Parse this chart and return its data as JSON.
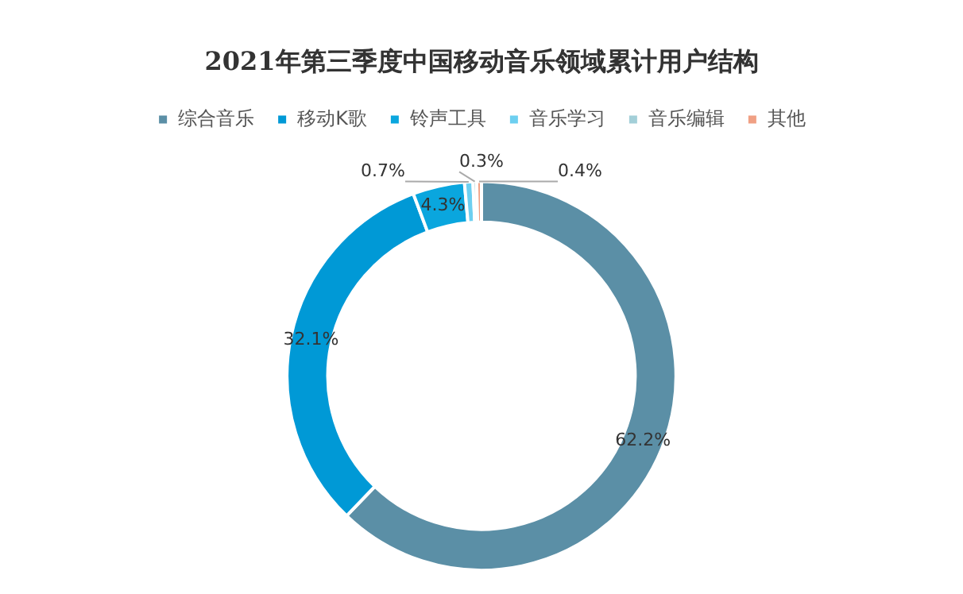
{
  "chart_data": {
    "type": "donut",
    "title": "2021年第三季度中国移动音乐领域累计用户结构",
    "categories": [
      "综合音乐",
      "移动K歌",
      "铃声工具",
      "音乐学习",
      "音乐编辑",
      "其他"
    ],
    "values": [
      62.2,
      32.1,
      4.3,
      0.7,
      0.3,
      0.4
    ],
    "colors": [
      "#5b8fa6",
      "#0099d6",
      "#0aa6de",
      "#6dcff0",
      "#a3cfd8",
      "#f0a084"
    ],
    "value_labels": [
      "62.2%",
      "32.1%",
      "4.3%",
      "0.7%",
      "0.3%",
      "0.4%"
    ],
    "legend": "top"
  }
}
